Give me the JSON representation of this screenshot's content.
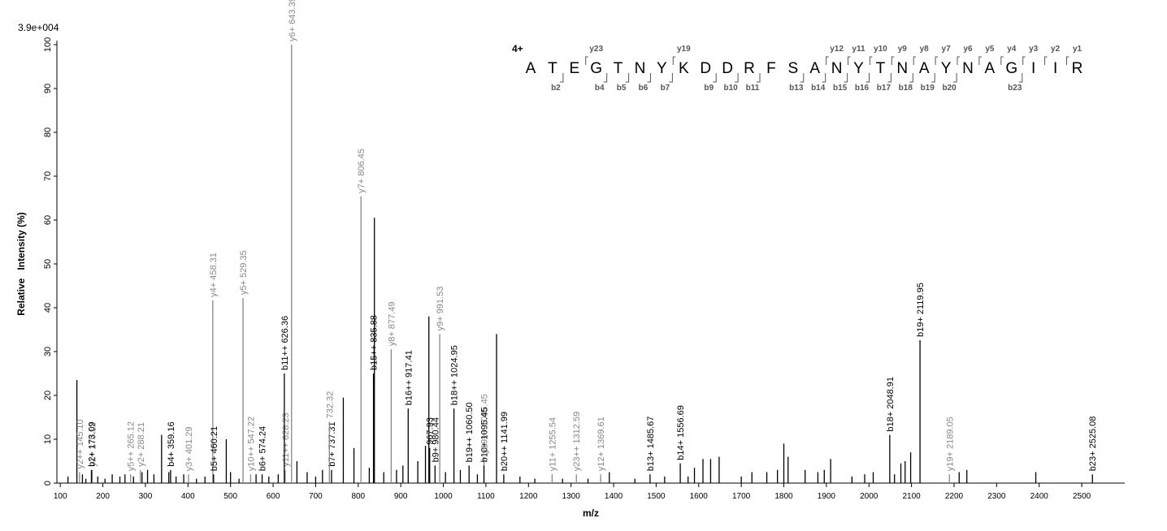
{
  "chart_data": {
    "type": "spectrum",
    "intensity_max_label": "3.9e+004",
    "xlabel": "m/z",
    "ylabel": "Relative   Intensity (%)",
    "xlim": [
      92,
      2601
    ],
    "ylim": [
      0,
      100
    ],
    "xticks": [
      100,
      200,
      300,
      400,
      500,
      600,
      700,
      800,
      900,
      1000,
      1100,
      1200,
      1300,
      1400,
      1500,
      1600,
      1700,
      1800,
      1900,
      2000,
      2100,
      2200,
      2300,
      2400,
      2500
    ],
    "yticks": [
      0,
      10,
      20,
      30,
      40,
      50,
      60,
      70,
      80,
      90,
      100
    ],
    "peak_color": "#000000",
    "peaks": {
      "x": [
        118,
        139,
        152,
        160,
        188,
        205,
        222,
        240,
        252,
        272,
        292,
        305,
        320,
        338,
        355,
        372,
        390,
        420,
        440,
        490,
        500,
        520,
        560,
        590,
        612,
        656,
        680,
        700,
        716,
        765,
        790,
        826,
        838,
        860,
        890,
        905,
        940,
        958,
        966,
        1005,
        1040,
        1080,
        1125,
        1180,
        1215,
        1280,
        1340,
        1390,
        1450,
        1520,
        1575,
        1590,
        1610,
        1628,
        1648,
        1700,
        1725,
        1760,
        1785,
        1800,
        1810,
        1850,
        1880,
        1895,
        1910,
        1960,
        1990,
        2010,
        2060,
        2075,
        2085,
        2098,
        2212,
        2230,
        2392
      ],
      "values": [
        1.5,
        23.5,
        2,
        1,
        1.5,
        1,
        2,
        1.5,
        2,
        1.5,
        2.5,
        3,
        2,
        11,
        2.5,
        1.5,
        2,
        1,
        1.5,
        10,
        2.5,
        1,
        2,
        1.5,
        2,
        5,
        2.5,
        1.5,
        3,
        19.5,
        8,
        3.5,
        60.5,
        2.5,
        3,
        4,
        5,
        8.5,
        38,
        2.5,
        3,
        2,
        34,
        1.5,
        1,
        1,
        1,
        2.5,
        1,
        1.5,
        1.5,
        3.5,
        5.5,
        5.5,
        6,
        1.5,
        2.5,
        2.5,
        3,
        9,
        6,
        3,
        2.5,
        3,
        5.5,
        1.5,
        2,
        2.5,
        2,
        4.5,
        5,
        7,
        2.5,
        3,
        2.5
      ]
    },
    "annotated_peaks": [
      {
        "x": 145.1,
        "value": 2.5,
        "label": "y2++ 145.10",
        "color": "#888888"
      },
      {
        "x": 175.12,
        "value": 3,
        "label": "y1+ 175.12",
        "color": "#888888"
      },
      {
        "x": 173.09,
        "value": 3,
        "label": "b2+ 173.09",
        "color": "#000000"
      },
      {
        "x": 265.12,
        "value": 2,
        "label": "y5++ 265.12",
        "color": "#888888"
      },
      {
        "x": 288.21,
        "value": 3,
        "label": "y2+ 288.21",
        "color": "#888888"
      },
      {
        "x": 359.16,
        "value": 3,
        "label": "b4+ 359.16",
        "color": "#000000"
      },
      {
        "x": 401.29,
        "value": 2,
        "label": "y3+ 401.29",
        "color": "#888888"
      },
      {
        "x": 458.31,
        "value": 41.7,
        "label": "y4+ 458.31",
        "color": "#888888"
      },
      {
        "x": 460.21,
        "value": 2,
        "label": "b5+ 460.21",
        "color": "#000000"
      },
      {
        "x": 529.35,
        "value": 42.2,
        "label": "y5+ 529.35",
        "color": "#888888"
      },
      {
        "x": 547.22,
        "value": 2,
        "label": "y10++ 547.22",
        "color": "#888888"
      },
      {
        "x": 574.24,
        "value": 2,
        "label": "b6+ 574.24",
        "color": "#000000"
      },
      {
        "x": 628.23,
        "value": 3,
        "label": "y11++ 628.23",
        "color": "#888888"
      },
      {
        "x": 626.36,
        "value": 25,
        "label": "b11++ 626.36",
        "color": "#000000"
      },
      {
        "x": 643.39,
        "value": 100,
        "label": "y6+ 643.39",
        "color": "#888888"
      },
      {
        "x": 737.31,
        "value": 3,
        "label": "b7+ 737.31",
        "color": "#000000"
      },
      {
        "x": 732.32,
        "value": 14,
        "label": "732.32",
        "color": "#888888"
      },
      {
        "x": 806.45,
        "value": 65.4,
        "label": "y7+ 806.45",
        "color": "#888888"
      },
      {
        "x": 835.88,
        "value": 25,
        "label": "b15++ 835.88",
        "color": "#000000"
      },
      {
        "x": 877.49,
        "value": 30.5,
        "label": "y8+ 877.49",
        "color": "#888888"
      },
      {
        "x": 917.41,
        "value": 17,
        "label": "b16++ 917.41",
        "color": "#000000"
      },
      {
        "x": 967.93,
        "value": 8,
        "label": "967.93",
        "color": "#000000"
      },
      {
        "x": 980.44,
        "value": 4,
        "label": "b9+ 980.44",
        "color": "#000000"
      },
      {
        "x": 991.53,
        "value": 34,
        "label": "y9+ 991.53",
        "color": "#888888"
      },
      {
        "x": 1024.95,
        "value": 17,
        "label": "b18++ 1024.95",
        "color": "#000000"
      },
      {
        "x": 1060.5,
        "value": 4,
        "label": "b19++ 1060.50",
        "color": "#000000"
      },
      {
        "x": 1095.45,
        "value": 6,
        "label": "y19++ 1095.45",
        "color": "#888888"
      },
      {
        "x": 1095.45,
        "value": 4,
        "label": "b10+ 1095.45",
        "color": "#000000"
      },
      {
        "x": 1141.99,
        "value": 2,
        "label": "b20++ 1141.99",
        "color": "#000000"
      },
      {
        "x": 1255.54,
        "value": 2,
        "label": "y11+ 1255.54",
        "color": "#888888"
      },
      {
        "x": 1312.59,
        "value": 2,
        "label": "y23++ 1312.59",
        "color": "#888888"
      },
      {
        "x": 1369.61,
        "value": 2,
        "label": "y12+ 1369.61",
        "color": "#888888"
      },
      {
        "x": 1485.67,
        "value": 2,
        "label": "b13+ 1485.67",
        "color": "#000000"
      },
      {
        "x": 1556.69,
        "value": 4.5,
        "label": "b14+ 1556.69",
        "color": "#000000"
      },
      {
        "x": 2048.91,
        "value": 11,
        "label": "b18+ 2048.91",
        "color": "#000000"
      },
      {
        "x": 2119.95,
        "value": 32.6,
        "label": "b19+ 2119.95",
        "color": "#000000"
      },
      {
        "x": 2189.05,
        "value": 2,
        "label": "y19+ 2189.05",
        "color": "#888888"
      },
      {
        "x": 2525.08,
        "value": 2,
        "label": "b23+ 2525.08",
        "color": "#000000"
      }
    ]
  },
  "peptide": {
    "charge": "4+",
    "sequence": [
      "A",
      "T",
      "E",
      "G",
      "T",
      "N",
      "Y",
      "K",
      "D",
      "D",
      "R",
      "F",
      "S",
      "A",
      "N",
      "Y",
      "T",
      "N",
      "A",
      "Y",
      "N",
      "A",
      "G",
      "I",
      "I",
      "R"
    ],
    "y_ions": [
      "y23",
      "y19",
      "y12",
      "y11",
      "y10",
      "y9",
      "y8",
      "y7",
      "y6",
      "y5",
      "y4",
      "y3",
      "y2",
      "y1"
    ],
    "b_ions": [
      "b2",
      "b4",
      "b5",
      "b6",
      "b7",
      "b9",
      "b10",
      "b11",
      "b13",
      "b14",
      "b15",
      "b16",
      "b17",
      "b18",
      "b19",
      "b20",
      "b23"
    ]
  }
}
